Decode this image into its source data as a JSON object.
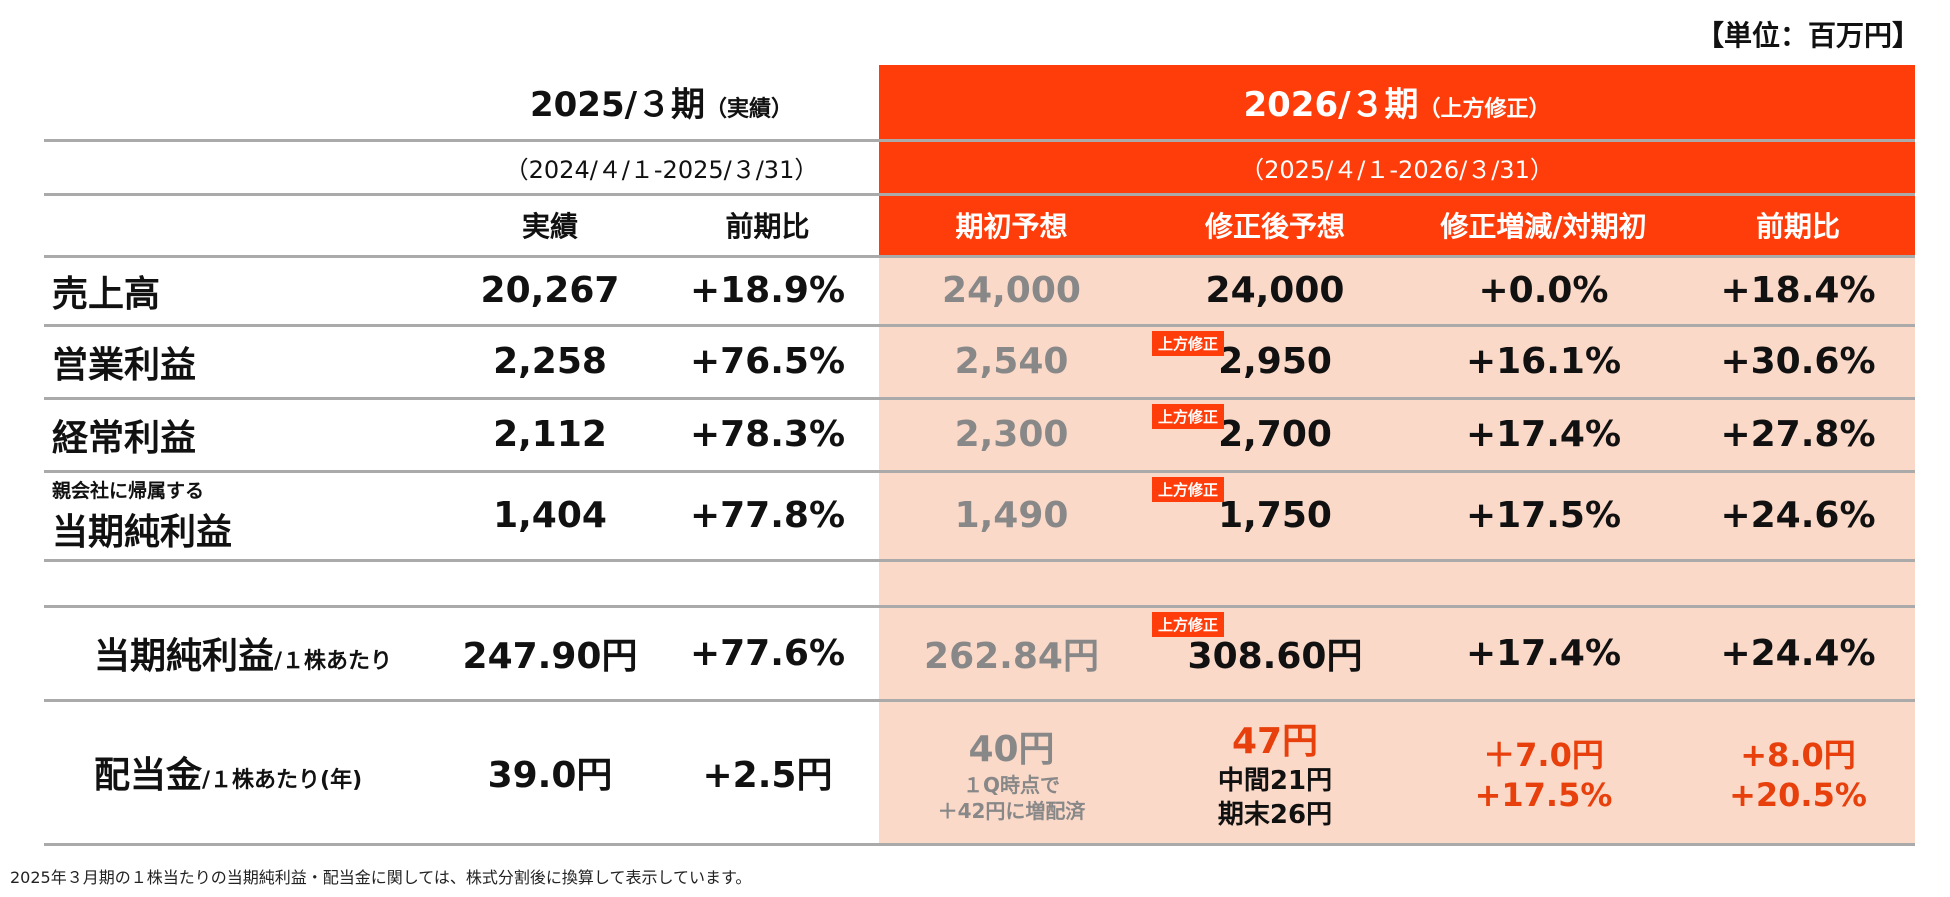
{
  "unit": "【単位：百万円】",
  "header": {
    "fy2025": {
      "title": "2025/３期",
      "note": "（実績）",
      "range": "（2024/４/１-2025/３/31）",
      "cols": [
        "実績",
        "前期比"
      ]
    },
    "fy2026": {
      "title": "2026/３期",
      "note": "（上方修正）",
      "range": "（2025/４/１-2026/３/31）",
      "cols": [
        "期初予想",
        "修正後予想",
        "修正増減/対期初",
        "前期比"
      ]
    }
  },
  "badge": "上方修正",
  "rows": [
    {
      "label": "売上高",
      "actual": "20,267",
      "yoy": "+18.9%",
      "initial": "24,000",
      "revised": "24,000",
      "change": "+0.0%",
      "yoy2026": "+18.4%",
      "revised_badge": false
    },
    {
      "label": "営業利益",
      "actual": "2,258",
      "yoy": "+76.5%",
      "initial": "2,540",
      "revised": "2,950",
      "change": "+16.1%",
      "yoy2026": "+30.6%",
      "revised_badge": true
    },
    {
      "label": "経常利益",
      "actual": "2,112",
      "yoy": "+78.3%",
      "initial": "2,300",
      "revised": "2,700",
      "change": "+17.4%",
      "yoy2026": "+27.8%",
      "revised_badge": true
    },
    {
      "label_sub": "親会社に帰属する",
      "label": "当期純利益",
      "actual": "1,404",
      "yoy": "+77.8%",
      "initial": "1,490",
      "revised": "1,750",
      "change": "+17.5%",
      "yoy2026": "+24.6%",
      "revised_badge": true
    }
  ],
  "eps": {
    "label": "当期純利益",
    "label_sub": "/１株あたり",
    "actual": "247.90円",
    "yoy": "+77.6%",
    "initial": "262.84円",
    "revised": "308.60円",
    "change": "+17.4%",
    "yoy2026": "+24.4%"
  },
  "dividend": {
    "label": "配当金",
    "label_sub": "/１株あたり(年)",
    "actual": "39.0円",
    "yoy": "+2.5円",
    "initial": "40円",
    "initial_note1": "１Q時点で",
    "initial_note2": "＋42円に増配済",
    "revised": "47円",
    "revised_interim": "中間21円",
    "revised_final": "期末26円",
    "change_yen": "＋7.0円",
    "change_pct": "+17.5%",
    "yoy_yen": "+8.0円",
    "yoy_pct": "+20.5%"
  },
  "footnote": "2025年３月期の１株当たりの当期純利益・配当金に関しては、株式分割後に換算して表示しています。",
  "colors": {
    "accent": "#ff3d0a",
    "forecast_bg": "#fbd9c9",
    "increase_text": "#e8400c"
  }
}
